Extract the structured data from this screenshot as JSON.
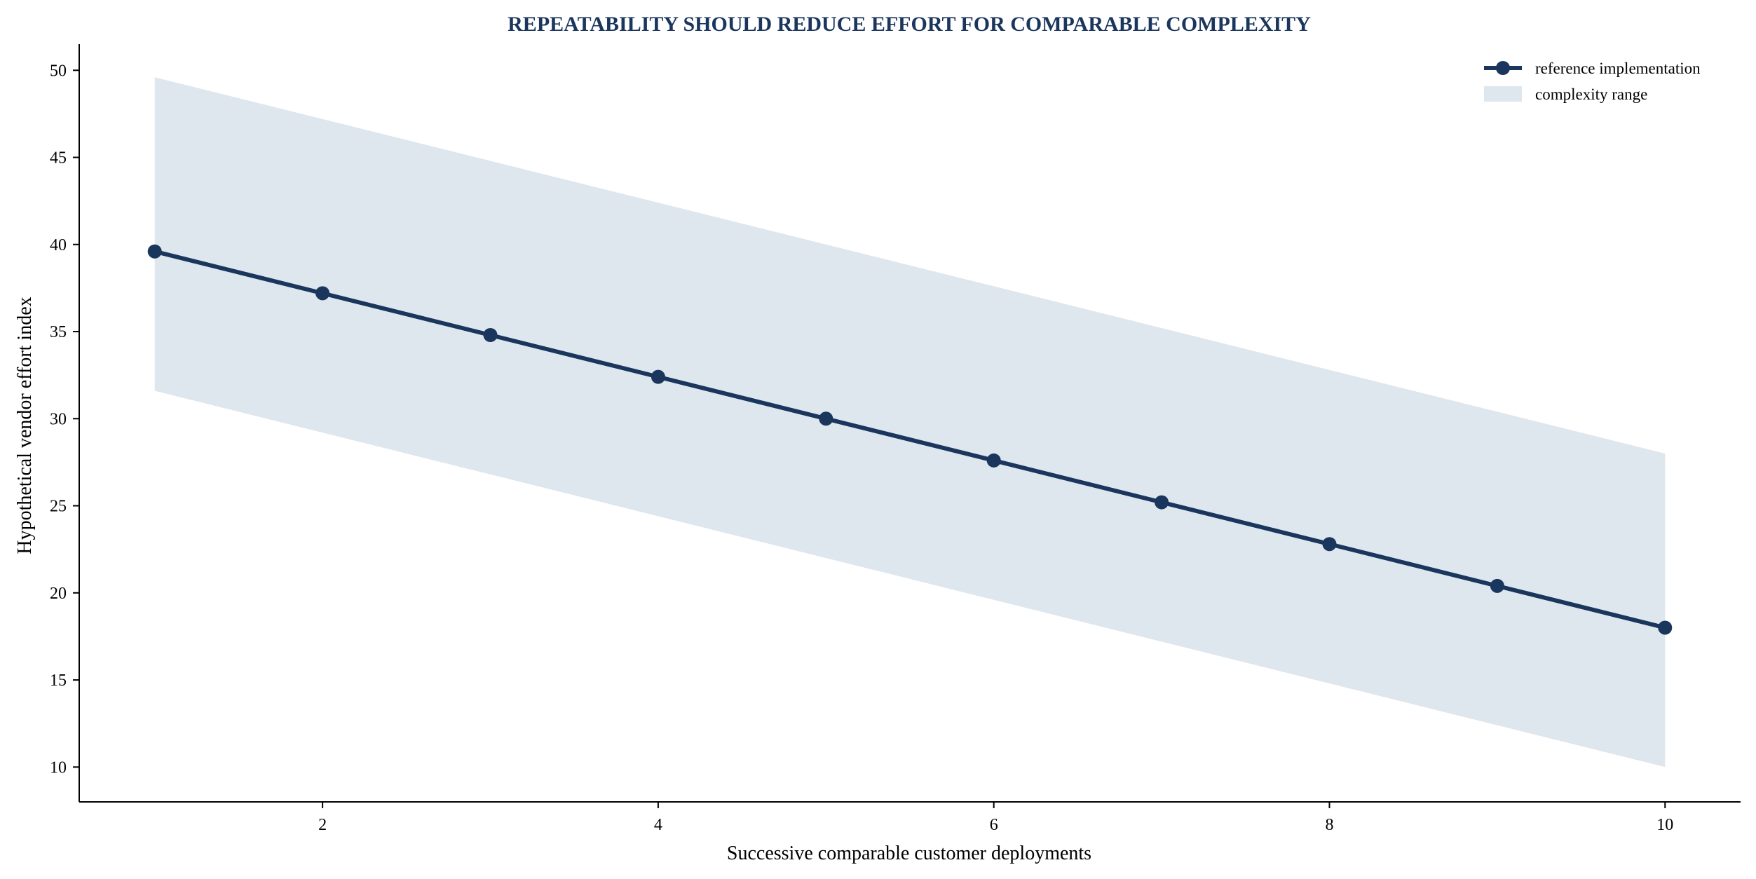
{
  "chart_data": {
    "type": "line",
    "title": "REPEATABILITY SHOULD REDUCE EFFORT FOR COMPARABLE COMPLEXITY",
    "xlabel": "Successive comparable customer deployments",
    "ylabel": "Hypothetical vendor effort index",
    "xlim": [
      0.55,
      10.45
    ],
    "ylim": [
      8.0,
      51.5
    ],
    "x_ticks": [
      2,
      4,
      6,
      8,
      10
    ],
    "y_ticks": [
      10,
      15,
      20,
      25,
      30,
      35,
      40,
      45,
      50
    ],
    "x": [
      1,
      2,
      3,
      4,
      5,
      6,
      7,
      8,
      9,
      10
    ],
    "series": [
      {
        "name": "reference implementation",
        "values": [
          39.6,
          37.2,
          34.8,
          32.4,
          30.0,
          27.6,
          25.2,
          22.8,
          20.4,
          18.0
        ],
        "color": "#1b365d",
        "marker": "circle"
      }
    ],
    "band": {
      "name": "complexity range",
      "upper": [
        49.6,
        47.2,
        44.8,
        42.4,
        40.0,
        37.6,
        35.2,
        32.8,
        30.4,
        28.0
      ],
      "lower": [
        31.6,
        29.2,
        26.8,
        24.4,
        22.0,
        19.6,
        17.2,
        14.8,
        12.4,
        10.0
      ],
      "color": "#dee6ee"
    },
    "grid": false,
    "legend_position": "top-right"
  }
}
